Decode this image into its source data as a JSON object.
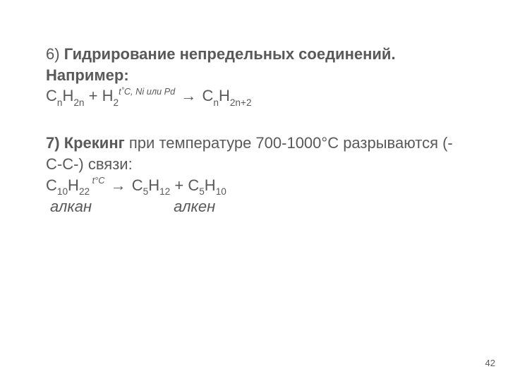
{
  "colors": {
    "text": "#595959",
    "background": "#ffffff"
  },
  "typography": {
    "body_fontsize_pt": 22,
    "pagenum_fontsize_pt": 13,
    "font_family": "Arial"
  },
  "section6": {
    "heading_prefix": "6) ",
    "heading_bold": "Гидрирование непредельных соединений. Например:",
    "formula": {
      "lhs1_base": "C",
      "lhs1_sub": "n",
      "lhs1b_base": "H",
      "lhs1b_sub": "2n",
      "plus": " + ",
      "lhs2_base": "H",
      "lhs2_sub": "2",
      "condition_sup": "t˚C, Ni или Pd",
      "arrow": " →   ",
      "rhs_base1": "C",
      "rhs_sub1": "n",
      "rhs_base2": "H",
      "rhs_sub2": "2n+2"
    }
  },
  "section7": {
    "heading_prefix": "7) ",
    "heading_bold": "Крекинг ",
    "heading_tail": "при температуре 700-1000°С разрываются (-С-С-) связи:",
    "formula": {
      "lhs_base1": "C",
      "lhs_sub1": "10",
      "lhs_base2": "H",
      "lhs_sub2": "22",
      "condition_sup": " t°C",
      "arrow": " →  ",
      "rhs1_base1": "C",
      "rhs1_sub1": "5",
      "rhs1_base2": "H",
      "rhs1_sub2": "12",
      "plus": " + ",
      "rhs2_base1": "C",
      "rhs2_sub1": "5",
      "rhs2_base2": "H",
      "rhs2_sub2": "10"
    },
    "classify": {
      "left": "алкан",
      "right": "алкен"
    }
  },
  "page_number": "42"
}
